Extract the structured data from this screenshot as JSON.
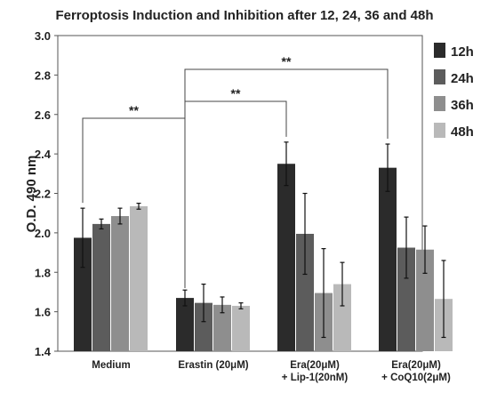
{
  "chart_data": {
    "type": "bar",
    "title": "Ferroptosis Induction and Inhibition after 12, 24, 36 and 48h",
    "xlabel": "",
    "ylabel": "O.D. 490 nm",
    "ylim": [
      1.4,
      3.0
    ],
    "yticks": [
      "1.4",
      "1.6",
      "1.8",
      "2.0",
      "2.2",
      "2.4",
      "2.6",
      "2.8",
      "3.0"
    ],
    "grid": false,
    "legend_position": "top-right",
    "categories": [
      [
        "Medium"
      ],
      [
        "Erastin (20μM)"
      ],
      [
        "Era(20μM)",
        "+ Lip-1(20nM)"
      ],
      [
        "Era(20μM)",
        "+ CoQ10(2μM)"
      ]
    ],
    "series": [
      {
        "name": "12h",
        "color": "#2b2b2b",
        "values": [
          1.975,
          1.67,
          2.35,
          2.33
        ],
        "errors": [
          0.15,
          0.04,
          0.11,
          0.12
        ]
      },
      {
        "name": "24h",
        "color": "#5c5c5c",
        "values": [
          2.045,
          1.645,
          1.995,
          1.925
        ],
        "errors": [
          0.025,
          0.095,
          0.205,
          0.155
        ]
      },
      {
        "name": "36h",
        "color": "#8e8e8e",
        "values": [
          2.085,
          1.635,
          1.695,
          1.915
        ],
        "errors": [
          0.04,
          0.04,
          0.225,
          0.12
        ]
      },
      {
        "name": "48h",
        "color": "#b9b9b9",
        "values": [
          2.135,
          1.63,
          1.74,
          1.665
        ],
        "errors": [
          0.015,
          0.015,
          0.11,
          0.195
        ]
      }
    ],
    "annotations": [
      {
        "text": "**",
        "from_category": 0,
        "to_category": 1
      },
      {
        "text": "**",
        "from_category": 1,
        "to_category": 2
      },
      {
        "text": "**",
        "from_category": 1,
        "to_category": 3
      }
    ]
  }
}
